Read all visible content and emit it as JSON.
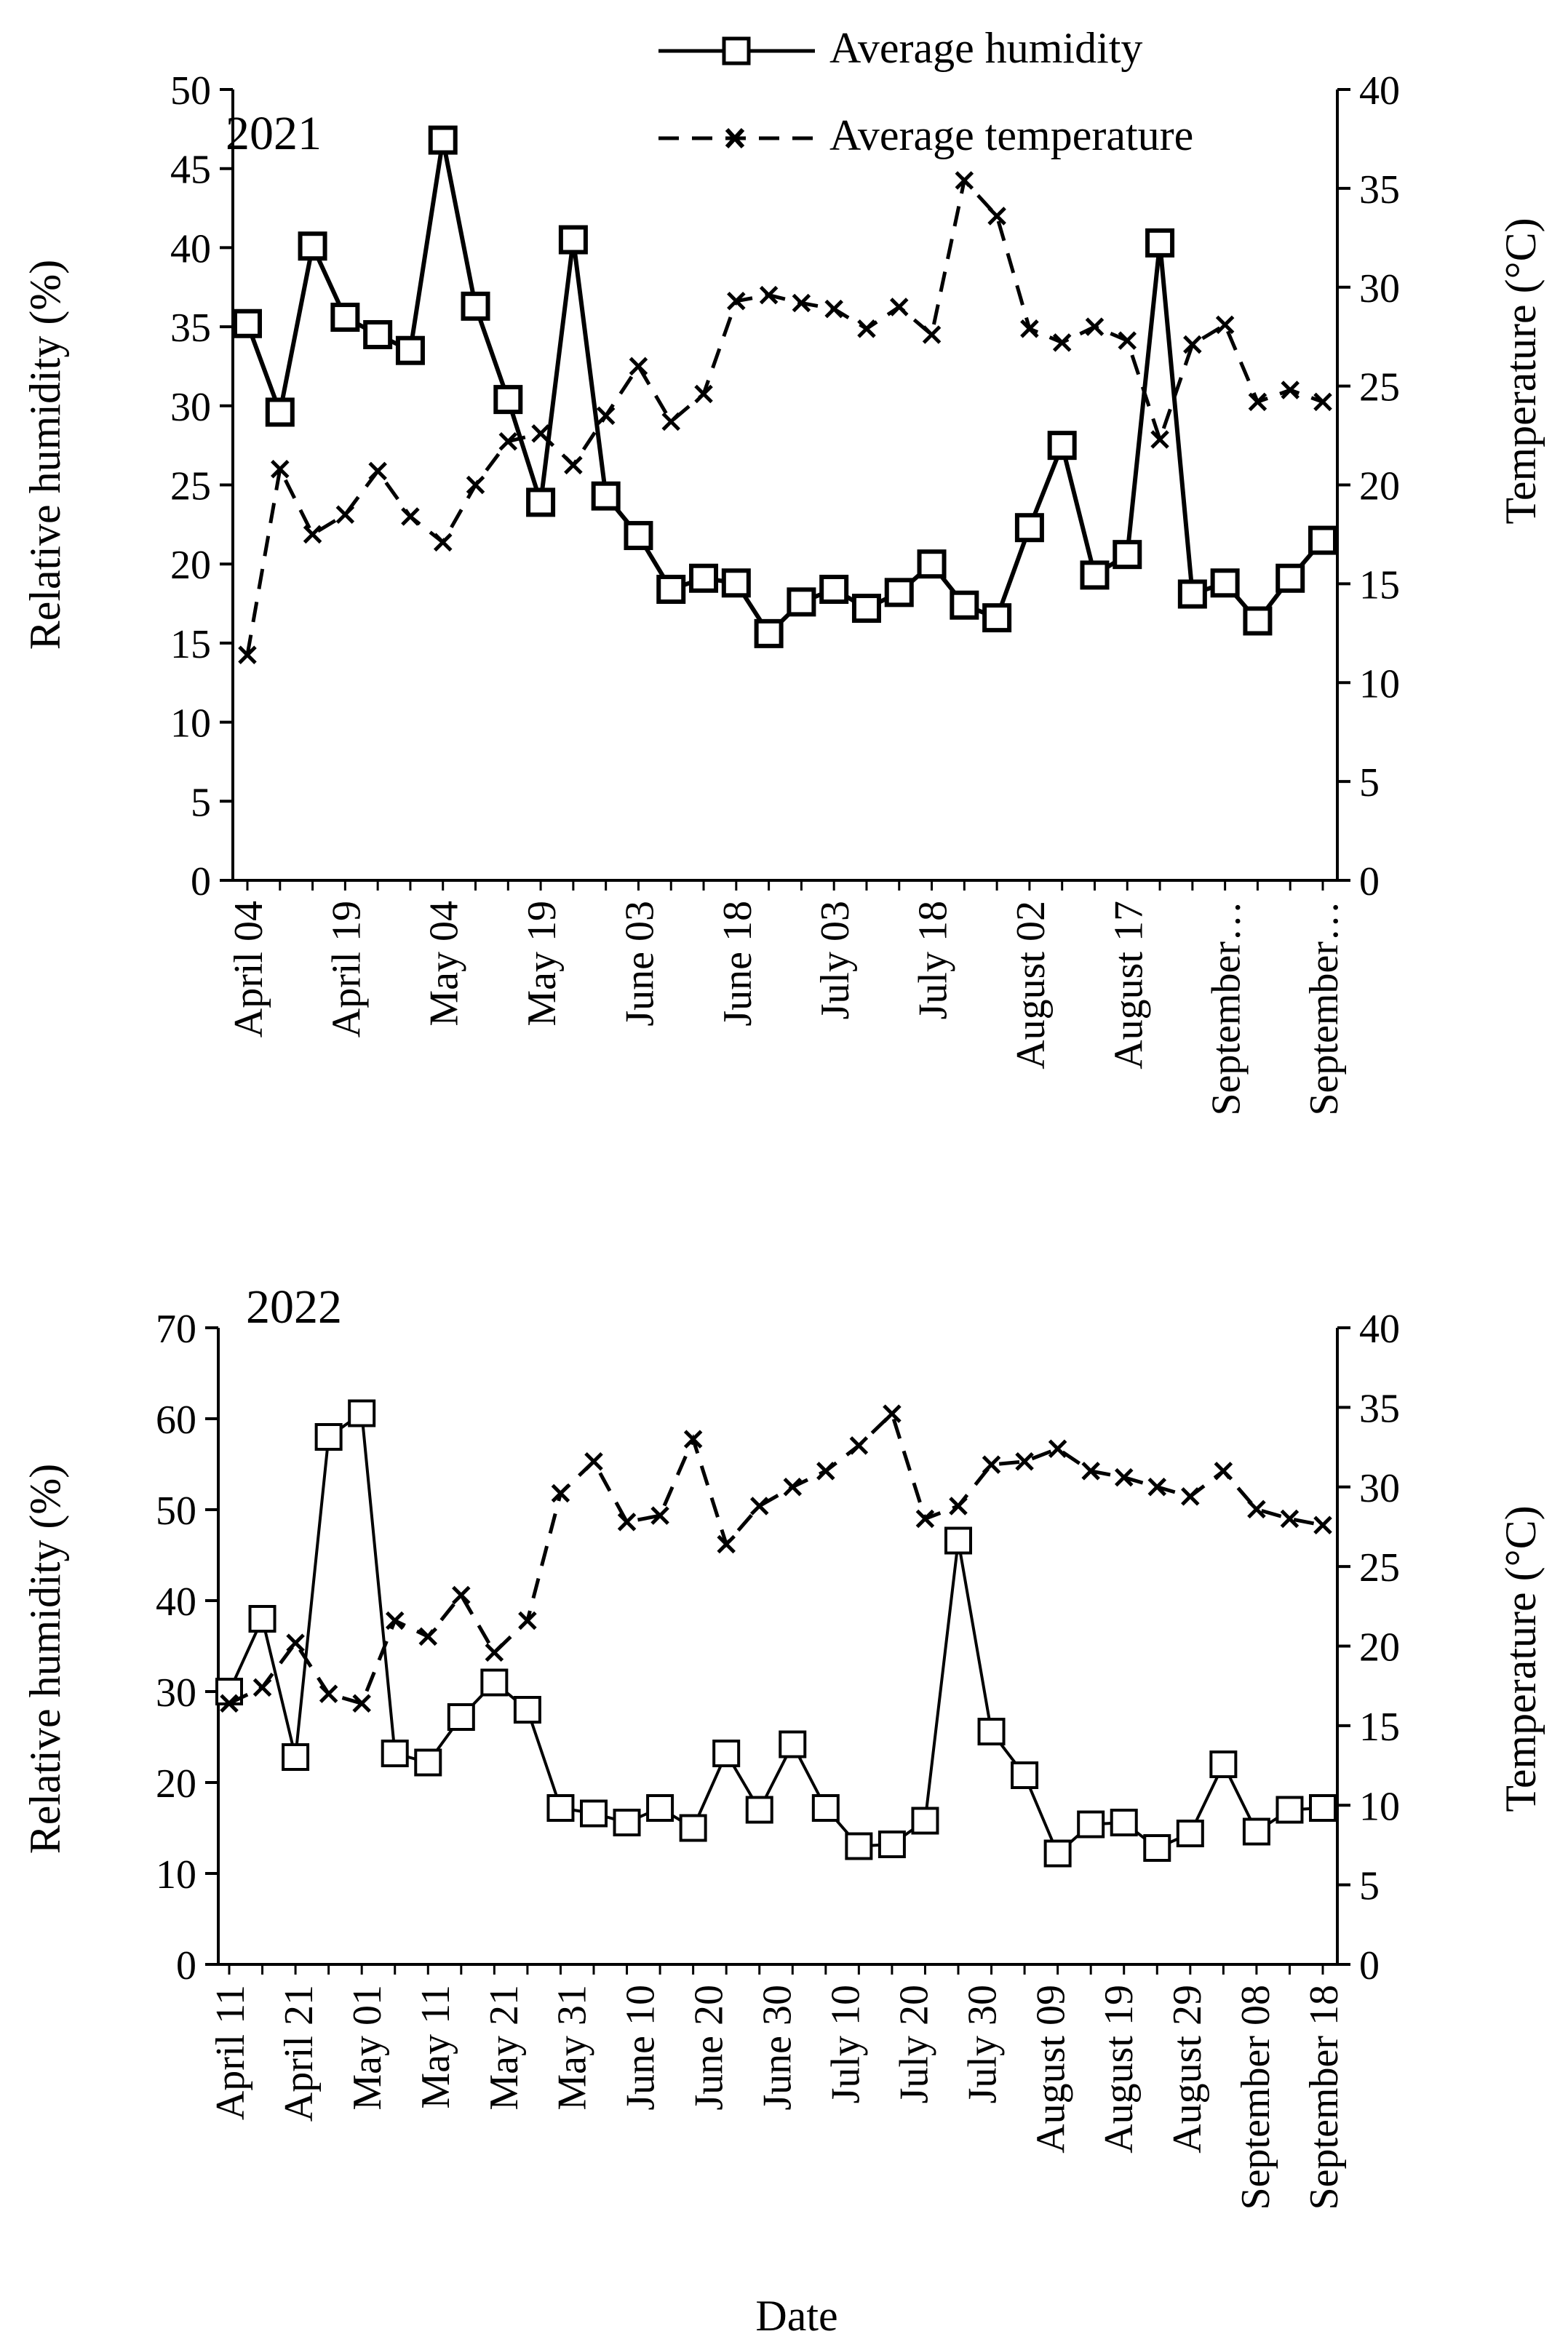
{
  "legend": {
    "humidity_label": "Average humidity",
    "temperature_label": "Average temperature"
  },
  "colors": {
    "line": "#000000",
    "background": "#ffffff"
  },
  "chart_data": [
    {
      "type": "line",
      "title": "2021",
      "xlabel": "",
      "ylabel": "Relative humidity (%)",
      "y2label": "Temperature (°C)",
      "ylim": [
        0,
        50
      ],
      "y2lim": [
        0,
        40
      ],
      "yticks": [
        0,
        5,
        10,
        15,
        20,
        25,
        30,
        35,
        40,
        45,
        50
      ],
      "y2ticks": [
        0,
        5,
        10,
        15,
        20,
        25,
        30,
        35,
        40
      ],
      "n_points": 34,
      "x_tick_labels": [
        "April 04",
        "April 19",
        "May 04",
        "May 19",
        "June 03",
        "June 18",
        "July 03",
        "July 18",
        "August 02",
        "August 17",
        "September…",
        "September…"
      ],
      "x_tick_index": [
        0,
        3,
        6,
        9,
        12,
        15,
        18,
        21,
        24,
        27,
        30,
        33
      ],
      "series": [
        {
          "name": "Average humidity",
          "axis": "left",
          "marker": "square",
          "line": "solid",
          "values": [
            35.2,
            29.6,
            40.1,
            35.6,
            34.5,
            33.5,
            46.8,
            36.3,
            30.4,
            23.9,
            40.5,
            24.3,
            21.8,
            18.4,
            19.1,
            18.8,
            15.6,
            17.6,
            18.4,
            17.2,
            18.2,
            20.0,
            17.4,
            16.6,
            22.3,
            27.5,
            19.3,
            20.6,
            40.3,
            18.1,
            18.8,
            16.4,
            19.1,
            21.5
          ]
        },
        {
          "name": "Average temperature",
          "axis": "right",
          "marker": "x",
          "line": "dashed",
          "values": [
            11.4,
            20.8,
            17.5,
            18.5,
            20.7,
            18.4,
            17.1,
            20.0,
            22.2,
            22.6,
            21.0,
            23.5,
            26.0,
            23.2,
            24.6,
            29.3,
            29.6,
            29.2,
            28.9,
            27.9,
            29.0,
            27.6,
            35.4,
            33.6,
            27.9,
            27.2,
            28.0,
            27.3,
            22.3,
            27.1,
            28.1,
            24.2,
            24.8,
            24.2
          ]
        }
      ]
    },
    {
      "type": "line",
      "title": "2022",
      "xlabel": "Date",
      "ylabel": "Relative humidity (%)",
      "y2label": "Temperature (°C)",
      "ylim": [
        0,
        70
      ],
      "y2lim": [
        0,
        40
      ],
      "yticks": [
        0,
        10,
        20,
        30,
        40,
        50,
        60,
        70
      ],
      "y2ticks": [
        0,
        5,
        10,
        15,
        20,
        25,
        30,
        35,
        40
      ],
      "n_points": 34,
      "x_tick_labels": [
        "April 11",
        "April 21",
        "May 01",
        "May 11",
        "May 21",
        "May 31",
        "June 10",
        "June 20",
        "June 30",
        "July 10",
        "July 20",
        "July 30",
        "August 09",
        "August 19",
        "August 29",
        "September 08",
        "September 18"
      ],
      "x_tick_index": [
        0,
        2.0625,
        4.125,
        6.1875,
        8.25,
        10.3125,
        12.375,
        14.4375,
        16.5,
        18.5625,
        20.625,
        22.6875,
        24.75,
        26.8125,
        28.875,
        30.9375,
        33
      ],
      "series": [
        {
          "name": "Average humidity",
          "axis": "left",
          "marker": "square",
          "line": "solid",
          "values": [
            30.0,
            38.0,
            22.8,
            58.0,
            60.6,
            23.2,
            22.2,
            27.2,
            31.0,
            28.0,
            17.2,
            16.6,
            15.6,
            17.2,
            15.0,
            23.2,
            17.0,
            24.2,
            17.2,
            13.0,
            13.2,
            15.8,
            46.6,
            25.6,
            20.8,
            12.2,
            15.4,
            15.6,
            12.8,
            14.4,
            22.0,
            14.6,
            17.0,
            17.2
          ]
        },
        {
          "name": "Average temperature",
          "axis": "right",
          "marker": "x",
          "line": "dashed",
          "values": [
            16.4,
            17.4,
            20.2,
            17.0,
            16.4,
            21.6,
            20.6,
            23.2,
            19.6,
            21.6,
            29.6,
            31.6,
            27.8,
            28.2,
            33.0,
            26.4,
            28.8,
            30.0,
            31.0,
            32.6,
            34.6,
            28.0,
            28.8,
            31.4,
            31.6,
            32.4,
            31.0,
            30.6,
            30.0,
            29.4,
            31.0,
            28.6,
            28.0,
            27.6
          ]
        }
      ]
    }
  ]
}
